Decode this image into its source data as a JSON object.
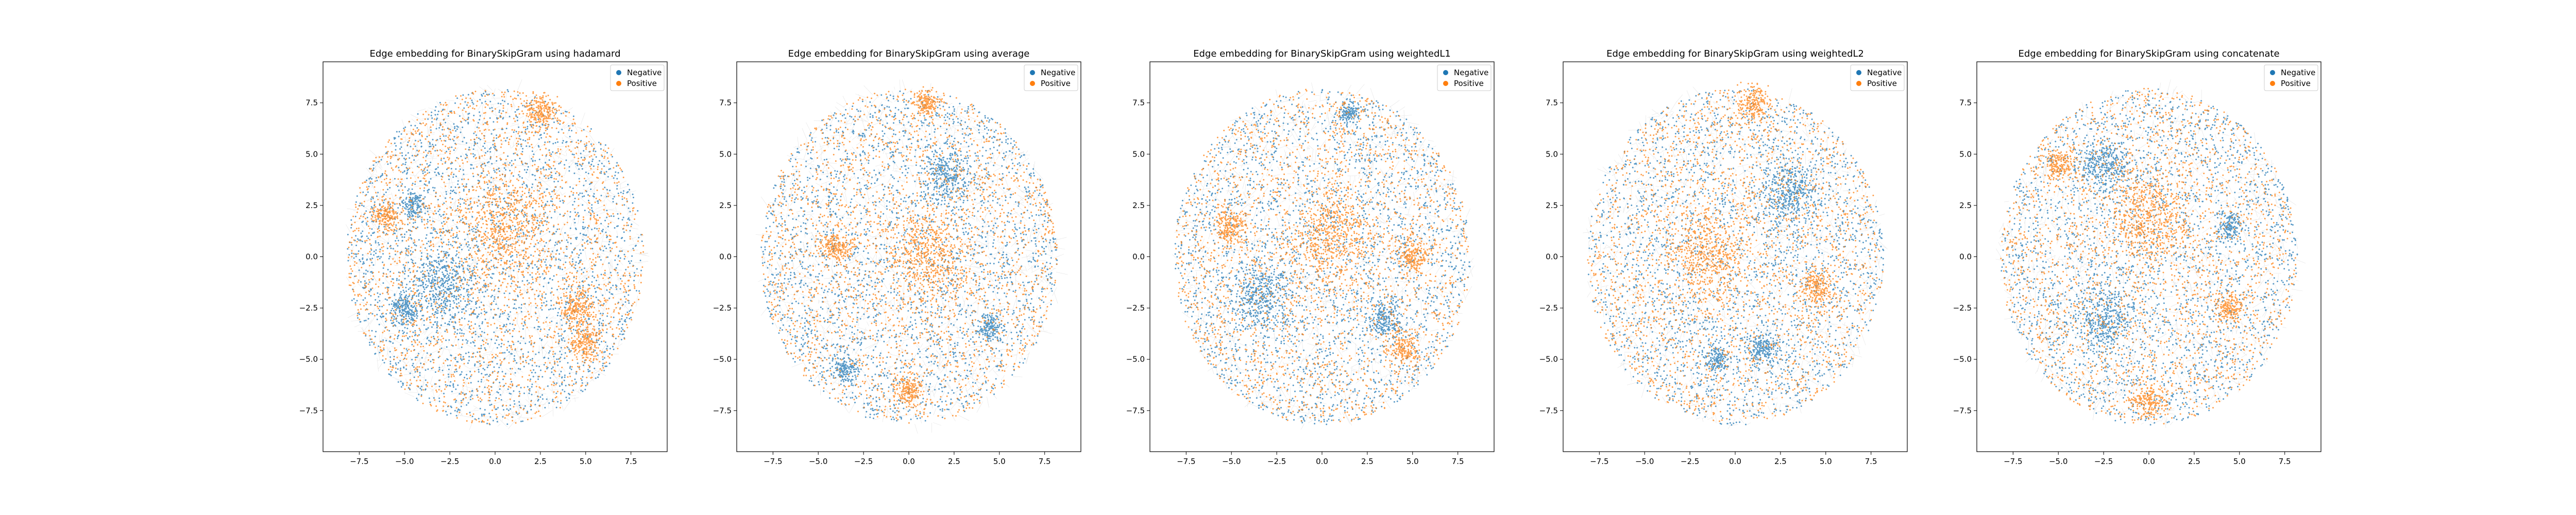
{
  "figure": {
    "background": "#ffffff"
  },
  "colors": {
    "negative": "#1f77b4",
    "positive": "#ff7f0e",
    "edges": "#9a9a9a",
    "frame": "#000000"
  },
  "chart_data": [
    {
      "type": "scatter",
      "title": "Edge embedding for BinarySkipGram using hadamard",
      "xlim": [
        -9.5,
        9.5
      ],
      "ylim": [
        -9.5,
        9.5
      ],
      "xticks": [
        -7.5,
        -5.0,
        -2.5,
        0.0,
        2.5,
        5.0,
        7.5
      ],
      "yticks": [
        -7.5,
        -5.0,
        -2.5,
        0.0,
        2.5,
        5.0,
        7.5
      ],
      "tick_labels_x": [
        "−7.5",
        "−5.0",
        "−2.5",
        "0.0",
        "2.5",
        "5.0",
        "7.5"
      ],
      "tick_labels_y": [
        "−7.5",
        "−5.0",
        "−2.5",
        "0.0",
        "2.5",
        "5.0",
        "7.5"
      ],
      "legend": {
        "position": "upper right",
        "entries": [
          "Negative",
          "Positive"
        ]
      },
      "series": [
        {
          "name": "Negative",
          "color": "#1f77b4",
          "distribution": "uniform disk",
          "center": [
            0,
            0
          ],
          "radius": 8.2
        },
        {
          "name": "Positive",
          "color": "#ff7f0e",
          "distribution": "uniform disk plus clusters",
          "center": [
            0,
            0
          ],
          "radius": 8.2
        }
      ],
      "clusters": [
        {
          "series": "Positive",
          "x": 0.5,
          "y": 1.5,
          "spread": 2.2
        },
        {
          "series": "Positive",
          "x": 2.5,
          "y": 7.0,
          "spread": 0.8
        },
        {
          "series": "Positive",
          "x": 4.5,
          "y": -2.5,
          "spread": 0.9
        },
        {
          "series": "Positive",
          "x": 5.0,
          "y": -4.2,
          "spread": 0.8
        },
        {
          "series": "Positive",
          "x": -6.0,
          "y": 2.0,
          "spread": 0.7
        },
        {
          "series": "Negative",
          "x": -4.5,
          "y": 2.5,
          "spread": 0.6
        },
        {
          "series": "Negative",
          "x": -5.0,
          "y": -2.5,
          "spread": 0.7
        },
        {
          "series": "Negative",
          "x": -3.0,
          "y": -1.5,
          "spread": 1.8
        }
      ]
    },
    {
      "type": "scatter",
      "title": "Edge embedding for BinarySkipGram using average",
      "xlim": [
        -9.5,
        9.5
      ],
      "ylim": [
        -9.5,
        9.5
      ],
      "xticks": [
        -7.5,
        -5.0,
        -2.5,
        0.0,
        2.5,
        5.0,
        7.5
      ],
      "yticks": [
        -7.5,
        -5.0,
        -2.5,
        0.0,
        2.5,
        5.0,
        7.5
      ],
      "tick_labels_x": [
        "−7.5",
        "−5.0",
        "−2.5",
        "0.0",
        "2.5",
        "5.0",
        "7.5"
      ],
      "tick_labels_y": [
        "−7.5",
        "−5.0",
        "−2.5",
        "0.0",
        "2.5",
        "5.0",
        "7.5"
      ],
      "legend": {
        "position": "upper right",
        "entries": [
          "Negative",
          "Positive"
        ]
      },
      "series": [
        {
          "name": "Negative",
          "color": "#1f77b4",
          "distribution": "uniform disk",
          "center": [
            0,
            0
          ],
          "radius": 8.2
        },
        {
          "name": "Positive",
          "color": "#ff7f0e",
          "distribution": "uniform disk plus clusters",
          "center": [
            0,
            0
          ],
          "radius": 8.2
        }
      ],
      "clusters": [
        {
          "series": "Positive",
          "x": 1.0,
          "y": 0.0,
          "spread": 2.0
        },
        {
          "series": "Positive",
          "x": 1.0,
          "y": 7.5,
          "spread": 0.7
        },
        {
          "series": "Positive",
          "x": 0.0,
          "y": -6.5,
          "spread": 0.7
        },
        {
          "series": "Positive",
          "x": -4.0,
          "y": 0.5,
          "spread": 0.8
        },
        {
          "series": "Negative",
          "x": -3.5,
          "y": -5.5,
          "spread": 0.6
        },
        {
          "series": "Negative",
          "x": 4.5,
          "y": -3.5,
          "spread": 0.6
        },
        {
          "series": "Negative",
          "x": 2.0,
          "y": 4.0,
          "spread": 1.2
        }
      ]
    },
    {
      "type": "scatter",
      "title": "Edge embedding for BinarySkipGram using weightedL1",
      "xlim": [
        -9.5,
        9.5
      ],
      "ylim": [
        -9.5,
        9.5
      ],
      "xticks": [
        -7.5,
        -5.0,
        -2.5,
        0.0,
        2.5,
        5.0,
        7.5
      ],
      "yticks": [
        -7.5,
        -5.0,
        -2.5,
        0.0,
        2.5,
        5.0,
        7.5
      ],
      "tick_labels_x": [
        "−7.5",
        "−5.0",
        "−2.5",
        "0.0",
        "2.5",
        "5.0",
        "7.5"
      ],
      "tick_labels_y": [
        "−7.5",
        "−5.0",
        "−2.5",
        "0.0",
        "2.5",
        "5.0",
        "7.5"
      ],
      "legend": {
        "position": "upper right",
        "entries": [
          "Negative",
          "Positive"
        ]
      },
      "series": [
        {
          "name": "Negative",
          "color": "#1f77b4",
          "distribution": "uniform disk",
          "center": [
            0,
            0
          ],
          "radius": 8.2
        },
        {
          "name": "Positive",
          "color": "#ff7f0e",
          "distribution": "uniform disk plus clusters",
          "center": [
            0,
            0
          ],
          "radius": 8.2
        }
      ],
      "clusters": [
        {
          "series": "Positive",
          "x": 0.5,
          "y": 1.0,
          "spread": 2.0
        },
        {
          "series": "Positive",
          "x": -5.0,
          "y": 1.5,
          "spread": 0.8
        },
        {
          "series": "Positive",
          "x": 5.0,
          "y": 0.0,
          "spread": 0.7
        },
        {
          "series": "Positive",
          "x": 4.5,
          "y": -4.5,
          "spread": 0.7
        },
        {
          "series": "Negative",
          "x": 1.5,
          "y": 7.0,
          "spread": 0.5
        },
        {
          "series": "Negative",
          "x": -3.5,
          "y": -2.0,
          "spread": 1.5
        },
        {
          "series": "Negative",
          "x": 3.5,
          "y": -3.0,
          "spread": 0.8
        }
      ]
    },
    {
      "type": "scatter",
      "title": "Edge embedding for BinarySkipGram using weightedL2",
      "xlim": [
        -9.5,
        9.5
      ],
      "ylim": [
        -9.5,
        9.5
      ],
      "xticks": [
        -7.5,
        -5.0,
        -2.5,
        0.0,
        2.5,
        5.0,
        7.5
      ],
      "yticks": [
        -7.5,
        -5.0,
        -2.5,
        0.0,
        2.5,
        5.0,
        7.5
      ],
      "tick_labels_x": [
        "−7.5",
        "−5.0",
        "−2.5",
        "0.0",
        "2.5",
        "5.0",
        "7.5"
      ],
      "tick_labels_y": [
        "−7.5",
        "−5.0",
        "−2.5",
        "0.0",
        "2.5",
        "5.0",
        "7.5"
      ],
      "legend": {
        "position": "upper right",
        "entries": [
          "Negative",
          "Positive"
        ]
      },
      "series": [
        {
          "name": "Negative",
          "color": "#1f77b4",
          "distribution": "uniform disk",
          "center": [
            0,
            0
          ],
          "radius": 8.2
        },
        {
          "name": "Positive",
          "color": "#ff7f0e",
          "distribution": "uniform disk plus clusters",
          "center": [
            0,
            0
          ],
          "radius": 8.2
        }
      ],
      "clusters": [
        {
          "series": "Positive",
          "x": -1.5,
          "y": 0.0,
          "spread": 2.0
        },
        {
          "series": "Positive",
          "x": 1.0,
          "y": 7.5,
          "spread": 0.8
        },
        {
          "series": "Positive",
          "x": 4.5,
          "y": -1.5,
          "spread": 0.8
        },
        {
          "series": "Negative",
          "x": 3.0,
          "y": 3.0,
          "spread": 1.4
        },
        {
          "series": "Negative",
          "x": -1.0,
          "y": -5.0,
          "spread": 0.6
        },
        {
          "series": "Negative",
          "x": 1.5,
          "y": -4.5,
          "spread": 0.7
        }
      ]
    },
    {
      "type": "scatter",
      "title": "Edge embedding for BinarySkipGram using concatenate",
      "xlim": [
        -9.5,
        9.5
      ],
      "ylim": [
        -9.5,
        9.5
      ],
      "xticks": [
        -7.5,
        -5.0,
        -2.5,
        0.0,
        2.5,
        5.0,
        7.5
      ],
      "yticks": [
        -7.5,
        -5.0,
        -2.5,
        0.0,
        2.5,
        5.0,
        7.5
      ],
      "tick_labels_x": [
        "−7.5",
        "−5.0",
        "−2.5",
        "0.0",
        "2.5",
        "5.0",
        "7.5"
      ],
      "tick_labels_y": [
        "−7.5",
        "−5.0",
        "−2.5",
        "0.0",
        "2.5",
        "5.0",
        "7.5"
      ],
      "legend": {
        "position": "upper right",
        "entries": [
          "Negative",
          "Positive"
        ]
      },
      "series": [
        {
          "name": "Negative",
          "color": "#1f77b4",
          "distribution": "uniform disk",
          "center": [
            0,
            0
          ],
          "radius": 8.2
        },
        {
          "name": "Positive",
          "color": "#ff7f0e",
          "distribution": "uniform disk plus clusters",
          "center": [
            0,
            0
          ],
          "radius": 8.2
        }
      ],
      "clusters": [
        {
          "series": "Positive",
          "x": 0.0,
          "y": 2.0,
          "spread": 2.0
        },
        {
          "series": "Positive",
          "x": 0.0,
          "y": -7.0,
          "spread": 0.8
        },
        {
          "series": "Positive",
          "x": -5.0,
          "y": 4.5,
          "spread": 0.7
        },
        {
          "series": "Positive",
          "x": 4.5,
          "y": -2.5,
          "spread": 0.7
        },
        {
          "series": "Negative",
          "x": -2.5,
          "y": 4.5,
          "spread": 1.2
        },
        {
          "series": "Negative",
          "x": -2.5,
          "y": -3.0,
          "spread": 1.5
        },
        {
          "series": "Negative",
          "x": 4.5,
          "y": 1.5,
          "spread": 0.6
        }
      ]
    }
  ]
}
